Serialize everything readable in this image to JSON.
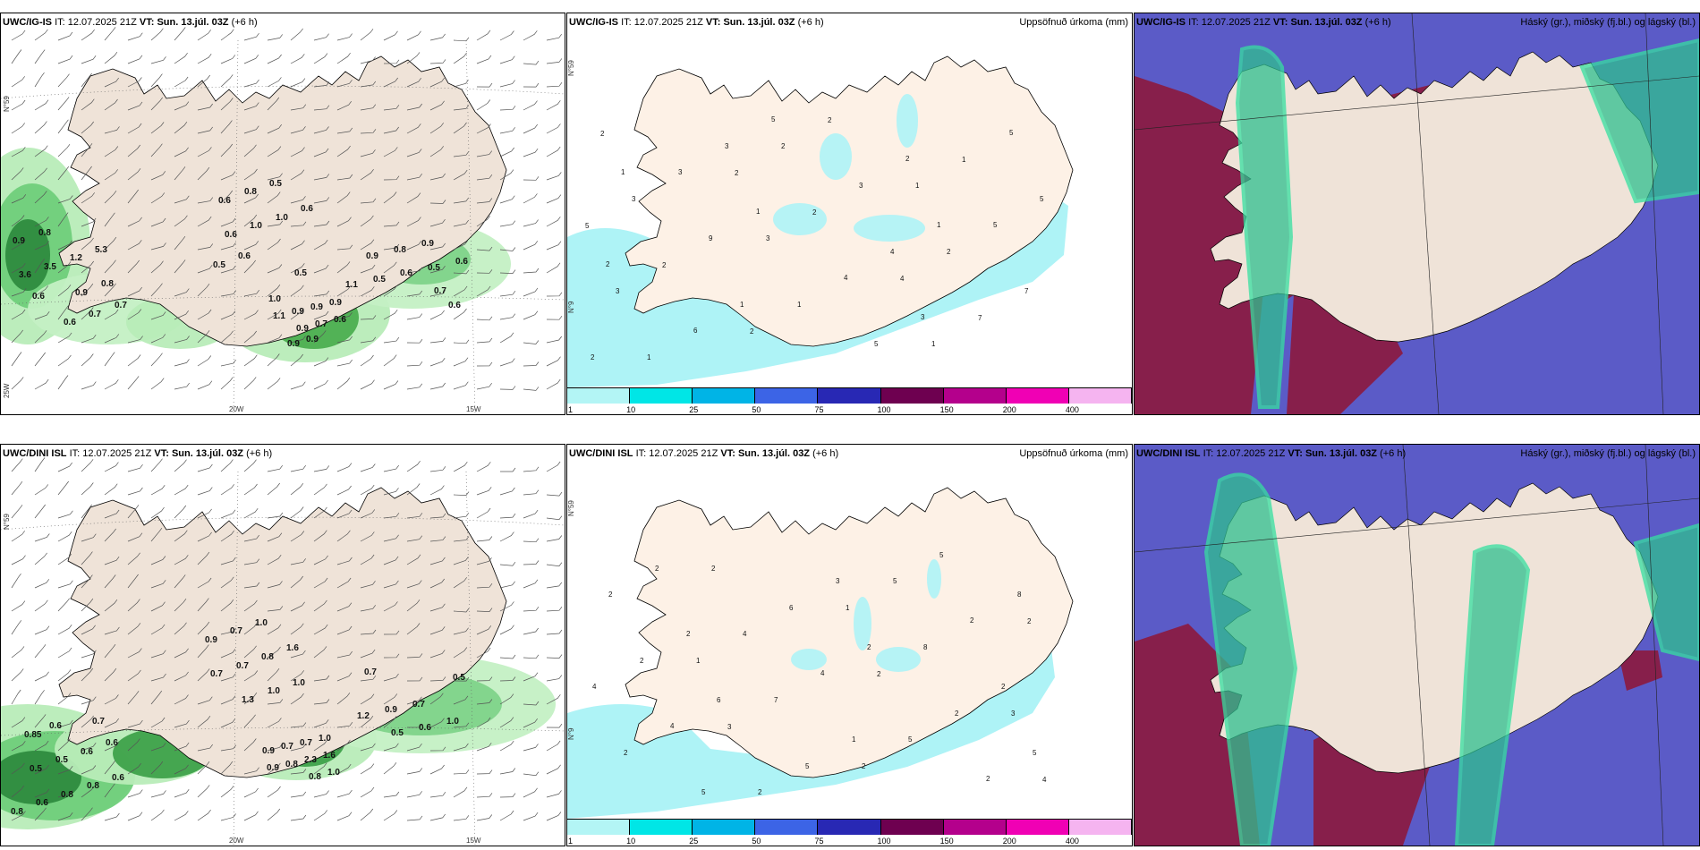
{
  "panels": [
    {
      "model": "UWC/IG-IS",
      "it_label": "IT:",
      "it": "12.07.2025 21Z",
      "vt_label": "VT:",
      "vt": "Sun. 13.júl. 03Z",
      "lead": "(+6 h)",
      "right_title": ""
    },
    {
      "model": "UWC/IG-IS",
      "it_label": "IT:",
      "it": "12.07.2025 21Z",
      "vt_label": "VT:",
      "vt": "Sun. 13.júl. 03Z",
      "lead": "(+6 h)",
      "right_title": "Uppsöfnuð úrkoma (mm)"
    },
    {
      "model": "UWC/IG-IS",
      "it_label": "IT:",
      "it": "12.07.2025 21Z",
      "vt_label": "VT:",
      "vt": "Sun. 13.júl. 03Z",
      "lead": "(+6 h)",
      "right_title": "Háský (gr.), miðský (fj.bl.) og lágský (bl.)"
    },
    {
      "model": "UWC/DINI ISL",
      "it_label": "IT:",
      "it": "12.07.2025 21Z",
      "vt_label": "VT:",
      "vt": "Sun. 13.júl. 03Z",
      "lead": "(+6 h)",
      "right_title": ""
    },
    {
      "model": "UWC/DINI ISL",
      "it_label": "IT:",
      "it": "12.07.2025 21Z",
      "vt_label": "VT:",
      "vt": "Sun. 13.júl. 03Z",
      "lead": "(+6 h)",
      "right_title": "Uppsöfnuð úrkoma (mm)"
    },
    {
      "model": "UWC/DINI ISL",
      "it_label": "IT:",
      "it": "12.07.2025 21Z",
      "vt_label": "VT:",
      "vt": "Sun. 13.júl. 03Z",
      "lead": "(+6 h)",
      "right_title": "Háský (gr.), miðský (fj.bl.) og lágský (bl.)"
    }
  ],
  "axes": {
    "lat_label": "N°59",
    "lat_label2": "N°9",
    "lon_left": "25W",
    "lon_mid": "20W",
    "lon_right": "15W"
  },
  "colorbar": {
    "labels": [
      "1",
      "10",
      "25",
      "50",
      "75",
      "100",
      "150",
      "200",
      "400"
    ],
    "colors": [
      "#b3f5f5",
      "#00e6e6",
      "#00b4e6",
      "#3c64e6",
      "#2828b4",
      "#6e0050",
      "#b4008c",
      "#f000b4",
      "#f5b4f0"
    ]
  },
  "precip_top": [
    "0.6",
    "1.0",
    "1.0",
    "0.6",
    "0.6",
    "0.8",
    "0.5",
    "0.5",
    "0.5",
    "0.6",
    "0.9",
    "0.8",
    "3.6",
    "3.5",
    "1.2",
    "5.3",
    "0.9",
    "0.8",
    "0.6",
    "0.7",
    "0.7",
    "0.6",
    "0.9",
    "0.7",
    "0.6",
    "1.1",
    "0.9",
    "0.9",
    "0.9",
    "1.0",
    "0.9",
    "0.9",
    "0.7",
    "1.1",
    "0.5",
    "0.6",
    "0.5",
    "0.6",
    "0.9",
    "0.8",
    "0.9",
    "0.6"
  ],
  "precip_bottom": [
    "1.3",
    "1.0",
    "1.0",
    "0.7",
    "0.7",
    "0.8",
    "1.6",
    "0.9",
    "0.7",
    "1.0",
    "0.7",
    "0.8",
    "0.6",
    "0.8",
    "0.8",
    "0.6",
    "0.5",
    "0.5",
    "0.6",
    "0.6",
    "0.85",
    "0.6",
    "0.8",
    "1.0",
    "0.9",
    "0.8",
    "2.3",
    "1.6",
    "0.9",
    "0.7",
    "0.7",
    "1.0",
    "0.5",
    "0.7",
    "0.5",
    "0.6",
    "1.0",
    "1.2",
    "0.9",
    "0.7"
  ],
  "accum_top": [
    "2",
    "5",
    "4",
    "2",
    "2",
    "1",
    "3",
    "3",
    "1",
    "2",
    "3",
    "2",
    "1",
    "1",
    "1",
    "2",
    "2",
    "7",
    "2",
    "3",
    "5",
    "4",
    "6",
    "5",
    "3",
    "9",
    "7",
    "5",
    "3",
    "5",
    "4",
    "1",
    "2",
    "2",
    "1",
    "2",
    "3",
    "5",
    "1",
    "1"
  ],
  "accum_bottom": [
    "1",
    "1",
    "3",
    "2",
    "2",
    "2",
    "2",
    "3",
    "4",
    "5",
    "4",
    "4",
    "5",
    "2",
    "2",
    "8",
    "7",
    "2",
    "5",
    "6",
    "2",
    "2",
    "5",
    "2",
    "2",
    "4",
    "4",
    "2",
    "3",
    "2",
    "2",
    "1",
    "5",
    "8",
    "2",
    "6",
    "5"
  ]
}
